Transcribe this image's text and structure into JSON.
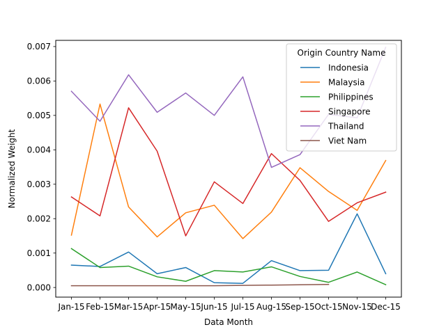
{
  "chart_data": {
    "type": "line",
    "xlabel": "Data Month",
    "ylabel": "Normalized Weight",
    "categories": [
      "Jan-15",
      "Feb-15",
      "Mar-15",
      "Apr-15",
      "May-15",
      "Jun-15",
      "Jul-15",
      "Aug-15",
      "Sep-15",
      "Oct-15",
      "Nov-15",
      "Dec-15"
    ],
    "ylim": [
      -0.00028,
      0.00718
    ],
    "yticks": [
      0.0,
      0.001,
      0.002,
      0.003,
      0.004,
      0.005,
      0.006,
      0.007
    ],
    "ytick_labels": [
      "0.000",
      "0.001",
      "0.002",
      "0.003",
      "0.004",
      "0.005",
      "0.006",
      "0.007"
    ],
    "grid": false,
    "legend": {
      "title": "Origin Country Name",
      "placement": "top-right"
    },
    "series": [
      {
        "name": "Indonesia",
        "color": "#1f77b4",
        "values": [
          0.00065,
          0.00061,
          0.00103,
          0.0004,
          0.00058,
          0.00014,
          0.00012,
          0.00078,
          0.00049,
          0.0005,
          0.00214,
          0.0004
        ]
      },
      {
        "name": "Malaysia",
        "color": "#ff7f0e",
        "values": [
          0.00152,
          0.00533,
          0.00234,
          0.00147,
          0.00217,
          0.00239,
          0.00142,
          0.00219,
          0.00348,
          0.00279,
          0.00224,
          0.00369
        ]
      },
      {
        "name": "Philippines",
        "color": "#2ca02c",
        "values": [
          0.00113,
          0.00058,
          0.00062,
          0.00031,
          0.00018,
          0.00049,
          0.00045,
          0.0006,
          0.00032,
          0.00015,
          0.00045,
          8e-05
        ]
      },
      {
        "name": "Singapore",
        "color": "#d62728",
        "values": [
          0.00263,
          0.00208,
          0.00522,
          0.00396,
          0.0015,
          0.00307,
          0.00244,
          0.00389,
          0.00311,
          0.00192,
          0.00246,
          0.00277
        ]
      },
      {
        "name": "Thailand",
        "color": "#9467bd",
        "values": [
          0.0057,
          0.00483,
          0.00618,
          0.00509,
          0.00565,
          0.005,
          0.00612,
          0.00349,
          0.00386,
          0.00503,
          0.00493,
          0.00698
        ]
      },
      {
        "name": "Viet Nam",
        "color": "#8c564b",
        "values": [
          5e-05,
          5e-05,
          5e-05,
          5e-05,
          5e-05,
          5e-05,
          6e-05,
          7e-05,
          8e-05,
          9e-05,
          null,
          null
        ]
      }
    ]
  }
}
